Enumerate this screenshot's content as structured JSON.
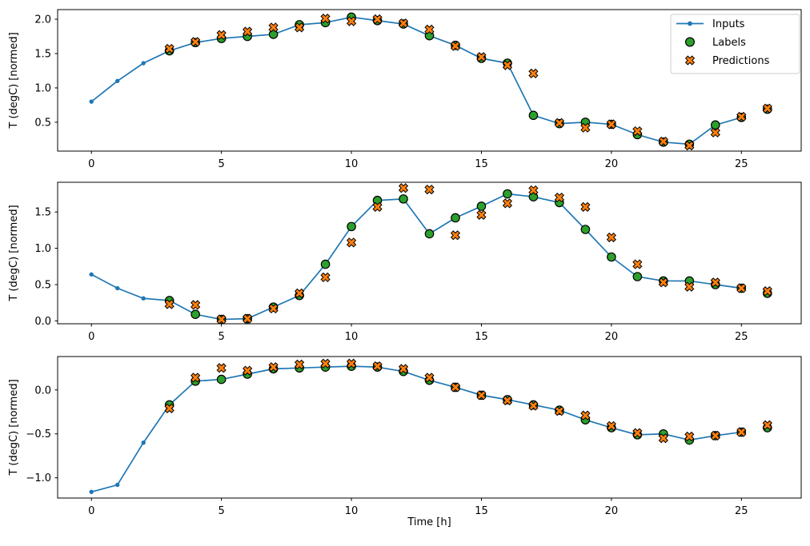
{
  "figure": {
    "background": "#ffffff",
    "xlabel": "Time [h]",
    "ylabel": "T (degC) [normed]",
    "x_ticks": [
      0,
      5,
      10,
      15,
      20,
      25
    ],
    "x_tick_labels": [
      "0",
      "5",
      "10",
      "15",
      "20",
      "25"
    ],
    "xlim": [
      -1.3,
      27.3
    ],
    "marker_edge_color": "#000000",
    "spine_color": "#000000",
    "legend": {
      "position": "upper right",
      "items": [
        {
          "label": "Inputs",
          "marker": "line-with-dot",
          "color": "#1f77b4"
        },
        {
          "label": "Labels",
          "marker": "filled-circle",
          "color": "#2ca02c"
        },
        {
          "label": "Predictions",
          "marker": "x-cross",
          "color": "#ff7f0e"
        }
      ]
    }
  },
  "chart_data": [
    {
      "type": "line",
      "subplot": "top",
      "ylabel": "T (degC) [normed]",
      "y_ticks": [
        0.5,
        1.0,
        1.5,
        2.0
      ],
      "y_tick_labels": [
        "0.5",
        "1.0",
        "1.5",
        "2.0"
      ],
      "ylim": [
        0.08,
        2.14
      ],
      "series": [
        {
          "name": "Inputs",
          "color": "#1f77b4",
          "marker": "dot",
          "x": [
            0,
            1,
            2,
            3,
            4,
            5,
            6,
            7,
            8,
            9,
            10,
            11,
            12,
            13,
            14,
            15,
            16,
            17,
            18,
            19,
            20,
            21,
            22,
            23,
            24,
            25
          ],
          "y": [
            0.8,
            1.1,
            1.36,
            1.54,
            1.66,
            1.72,
            1.75,
            1.78,
            1.92,
            1.95,
            2.03,
            1.98,
            1.93,
            1.76,
            1.62,
            1.43,
            1.36,
            0.6,
            0.48,
            0.5,
            0.47,
            0.32,
            0.21,
            0.18,
            0.46,
            0.57
          ]
        },
        {
          "name": "Labels",
          "color": "#2ca02c",
          "marker": "circle",
          "x": [
            3,
            4,
            5,
            6,
            7,
            8,
            9,
            10,
            11,
            12,
            13,
            14,
            15,
            16,
            17,
            18,
            19,
            20,
            21,
            22,
            23,
            24,
            25,
            26
          ],
          "y": [
            1.54,
            1.66,
            1.72,
            1.75,
            1.78,
            1.92,
            1.95,
            2.03,
            1.98,
            1.93,
            1.76,
            1.62,
            1.43,
            1.36,
            0.6,
            0.48,
            0.5,
            0.47,
            0.32,
            0.21,
            0.18,
            0.46,
            0.57,
            0.69
          ]
        },
        {
          "name": "Predictions",
          "color": "#ff7f0e",
          "marker": "x",
          "x": [
            3,
            4,
            5,
            6,
            7,
            8,
            9,
            10,
            11,
            12,
            13,
            14,
            15,
            16,
            17,
            18,
            19,
            20,
            21,
            22,
            23,
            24,
            25,
            26
          ],
          "y": [
            1.57,
            1.67,
            1.77,
            1.82,
            1.88,
            1.88,
            2.01,
            1.97,
            2.0,
            1.94,
            1.85,
            1.61,
            1.45,
            1.33,
            1.21,
            0.49,
            0.42,
            0.47,
            0.37,
            0.22,
            0.16,
            0.35,
            0.58,
            0.7
          ]
        }
      ]
    },
    {
      "type": "line",
      "subplot": "middle",
      "ylabel": "T (degC) [normed]",
      "y_ticks": [
        0.0,
        0.5,
        1.0,
        1.5
      ],
      "y_tick_labels": [
        "0.0",
        "0.5",
        "1.0",
        "1.5"
      ],
      "ylim": [
        -0.04,
        1.91
      ],
      "series": [
        {
          "name": "Inputs",
          "color": "#1f77b4",
          "marker": "dot",
          "x": [
            0,
            1,
            2,
            3,
            4,
            5,
            6,
            7,
            8,
            9,
            10,
            11,
            12,
            13,
            14,
            15,
            16,
            17,
            18,
            19,
            20,
            21,
            22,
            23,
            24,
            25
          ],
          "y": [
            0.64,
            0.45,
            0.31,
            0.28,
            0.09,
            0.02,
            0.03,
            0.19,
            0.35,
            0.78,
            1.3,
            1.66,
            1.68,
            1.2,
            1.42,
            1.58,
            1.75,
            1.71,
            1.63,
            1.26,
            0.88,
            0.61,
            0.55,
            0.55,
            0.5,
            0.45
          ]
        },
        {
          "name": "Labels",
          "color": "#2ca02c",
          "marker": "circle",
          "x": [
            3,
            4,
            5,
            6,
            7,
            8,
            9,
            10,
            11,
            12,
            13,
            14,
            15,
            16,
            17,
            18,
            19,
            20,
            21,
            22,
            23,
            24,
            25,
            26
          ],
          "y": [
            0.28,
            0.09,
            0.02,
            0.03,
            0.19,
            0.35,
            0.78,
            1.3,
            1.66,
            1.68,
            1.2,
            1.42,
            1.58,
            1.75,
            1.71,
            1.63,
            1.26,
            0.88,
            0.61,
            0.55,
            0.55,
            0.5,
            0.45,
            0.38
          ]
        },
        {
          "name": "Predictions",
          "color": "#ff7f0e",
          "marker": "x",
          "x": [
            3,
            4,
            5,
            6,
            7,
            8,
            9,
            10,
            11,
            12,
            13,
            14,
            15,
            16,
            17,
            18,
            19,
            20,
            21,
            22,
            23,
            24,
            25,
            26
          ],
          "y": [
            0.23,
            0.22,
            0.02,
            0.03,
            0.17,
            0.38,
            0.6,
            1.08,
            1.57,
            1.83,
            1.81,
            1.18,
            1.46,
            1.62,
            1.8,
            1.7,
            1.57,
            1.15,
            0.78,
            0.53,
            0.47,
            0.53,
            0.45,
            0.41
          ]
        }
      ]
    },
    {
      "type": "line",
      "subplot": "bottom",
      "ylabel": "T (degC) [normed]",
      "y_ticks": [
        0.0,
        -0.5,
        -1.0
      ],
      "y_tick_labels": [
        "0.0",
        "−0.5",
        "−1.0"
      ],
      "ylim": [
        -1.23,
        0.38
      ],
      "series": [
        {
          "name": "Inputs",
          "color": "#1f77b4",
          "marker": "dot",
          "x": [
            0,
            1,
            2,
            3,
            4,
            5,
            6,
            7,
            8,
            9,
            10,
            11,
            12,
            13,
            14,
            15,
            16,
            17,
            18,
            19,
            20,
            21,
            22,
            23,
            24,
            25
          ],
          "y": [
            -1.16,
            -1.08,
            -0.6,
            -0.17,
            0.1,
            0.12,
            0.18,
            0.24,
            0.25,
            0.26,
            0.27,
            0.26,
            0.21,
            0.11,
            0.03,
            -0.06,
            -0.11,
            -0.17,
            -0.23,
            -0.34,
            -0.43,
            -0.51,
            -0.5,
            -0.57,
            -0.52,
            -0.48
          ]
        },
        {
          "name": "Labels",
          "color": "#2ca02c",
          "marker": "circle",
          "x": [
            3,
            4,
            5,
            6,
            7,
            8,
            9,
            10,
            11,
            12,
            13,
            14,
            15,
            16,
            17,
            18,
            19,
            20,
            21,
            22,
            23,
            24,
            25,
            26
          ],
          "y": [
            -0.17,
            0.1,
            0.12,
            0.18,
            0.24,
            0.25,
            0.26,
            0.27,
            0.26,
            0.21,
            0.11,
            0.03,
            -0.06,
            -0.11,
            -0.17,
            -0.23,
            -0.34,
            -0.43,
            -0.51,
            -0.5,
            -0.57,
            -0.52,
            -0.48,
            -0.43
          ]
        },
        {
          "name": "Predictions",
          "color": "#ff7f0e",
          "marker": "x",
          "x": [
            3,
            4,
            5,
            6,
            7,
            8,
            9,
            10,
            11,
            12,
            13,
            14,
            15,
            16,
            17,
            18,
            19,
            20,
            21,
            22,
            23,
            24,
            25,
            26
          ],
          "y": [
            -0.21,
            0.14,
            0.25,
            0.22,
            0.26,
            0.29,
            0.3,
            0.3,
            0.27,
            0.24,
            0.14,
            0.03,
            -0.06,
            -0.12,
            -0.18,
            -0.24,
            -0.29,
            -0.41,
            -0.49,
            -0.55,
            -0.53,
            -0.52,
            -0.48,
            -0.4
          ]
        }
      ]
    }
  ]
}
